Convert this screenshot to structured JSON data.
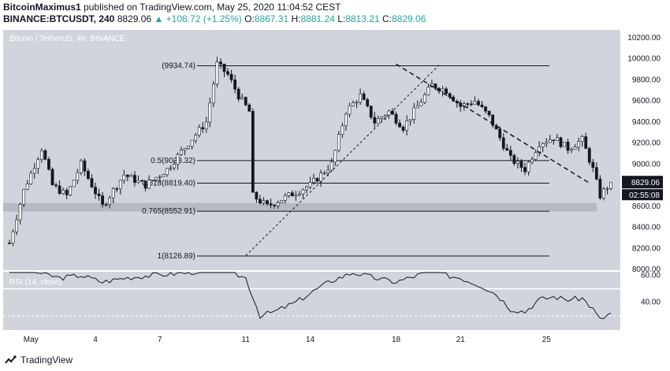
{
  "header": {
    "author": "BitcoinMaximus1",
    "published_text": "published on TradingView.com, May 25, 2020 11:04:52 CEST",
    "symbol": "BINANCE:BTCUSDT, 240",
    "last": "8829.06",
    "change": "+108.72 (+1.25%)",
    "o_label": "O:",
    "o_value": "8867.31",
    "h_label": "H:",
    "h_value": "8881.24",
    "l_label": "L:",
    "l_value": "8813.21",
    "c_label": "C:",
    "c_value": "8829.06"
  },
  "footer": {
    "brand": "TradingView"
  },
  "colors": {
    "panel_bg": "#d1d4dc",
    "up": "#ffffff",
    "down": "#131722",
    "support_zone": "#b2b5be",
    "line": "#131722"
  },
  "chart_data": {
    "type": "candlestick",
    "title": "Bitcoin / TetherUS, 4h, BINANCE",
    "price_axis": {
      "ylim": [
        8000,
        10260
      ],
      "ticks": [
        "10200.00",
        "10000.00",
        "9800.00",
        "9600.00",
        "9400.00",
        "9200.00",
        "9000.00",
        "8800.00",
        "8600.00",
        "8400.00",
        "8200.00",
        "8000.00"
      ],
      "current_price": "8829.06",
      "countdown": "02:55:08"
    },
    "x_axis": {
      "labels": [
        {
          "label": "May",
          "date": "2020-05-01"
        },
        {
          "label": "4",
          "date": "2020-05-04"
        },
        {
          "label": "7",
          "date": "2020-05-07"
        },
        {
          "label": "11",
          "date": "2020-05-11"
        },
        {
          "label": "14",
          "date": "2020-05-14"
        },
        {
          "label": "18",
          "date": "2020-05-18"
        },
        {
          "label": "21",
          "date": "2020-05-21"
        },
        {
          "label": "25",
          "date": "2020-05-25"
        }
      ]
    },
    "price_path": {
      "start": "2020-04-30",
      "interval_hours": 4,
      "anchors": [
        [
          0,
          8250
        ],
        [
          4,
          8750
        ],
        [
          9,
          9150
        ],
        [
          12,
          8800
        ],
        [
          16,
          8700
        ],
        [
          20,
          9000
        ],
        [
          26,
          8600
        ],
        [
          32,
          8900
        ],
        [
          38,
          8800
        ],
        [
          44,
          8950
        ],
        [
          50,
          9200
        ],
        [
          55,
          9400
        ],
        [
          58,
          9950
        ],
        [
          61,
          9850
        ],
        [
          64,
          9650
        ],
        [
          67,
          9500
        ],
        [
          68,
          8700
        ],
        [
          72,
          8600
        ],
        [
          78,
          8700
        ],
        [
          84,
          8800
        ],
        [
          90,
          9000
        ],
        [
          94,
          9500
        ],
        [
          98,
          9650
        ],
        [
          102,
          9400
        ],
        [
          106,
          9500
        ],
        [
          110,
          9350
        ],
        [
          114,
          9550
        ],
        [
          118,
          9750
        ],
        [
          122,
          9700
        ],
        [
          126,
          9550
        ],
        [
          130,
          9600
        ],
        [
          134,
          9450
        ],
        [
          137,
          9250
        ],
        [
          140,
          9050
        ],
        [
          144,
          8950
        ],
        [
          148,
          9200
        ],
        [
          152,
          9250
        ],
        [
          156,
          9150
        ],
        [
          160,
          9230
        ],
        [
          163,
          8950
        ],
        [
          165,
          8700
        ],
        [
          168,
          8830
        ]
      ]
    },
    "fibonacci": [
      {
        "ratio": "",
        "label": "(9934.74)",
        "price": 9934.74
      },
      {
        "ratio": "0.5",
        "label": "(9033.32)",
        "price": 9033.32
      },
      {
        "ratio": "0.618",
        "label": "(8819.40)",
        "price": 8819.4
      },
      {
        "ratio": "0.765",
        "label": "(8552.91)",
        "price": 8552.91
      },
      {
        "ratio": "1",
        "label": "(8126.89)",
        "price": 8126.89
      }
    ],
    "support_zone": {
      "low": 8550,
      "high": 8630
    },
    "ascending_trendline": {
      "from": {
        "date": "2020-05-11",
        "price": 8130
      },
      "to": {
        "date": "2020-05-20",
        "price": 9940
      }
    },
    "descending_trendline": {
      "from": {
        "date": "2020-05-18",
        "price": 9950
      },
      "to": {
        "date": "2020-05-27",
        "price": 8820
      }
    },
    "rsi": {
      "title": "RSI (14, close)",
      "ylim": [
        20,
        62
      ],
      "ticks": [
        "60.00",
        "40.00"
      ],
      "level_lines": [
        30,
        50,
        70
      ],
      "anchors": [
        [
          0,
          65
        ],
        [
          8,
          62
        ],
        [
          14,
          58
        ],
        [
          20,
          60
        ],
        [
          26,
          55
        ],
        [
          32,
          58
        ],
        [
          40,
          60
        ],
        [
          50,
          62
        ],
        [
          58,
          65
        ],
        [
          62,
          62
        ],
        [
          66,
          58
        ],
        [
          70,
          30
        ],
        [
          74,
          33
        ],
        [
          80,
          40
        ],
        [
          86,
          50
        ],
        [
          90,
          56
        ],
        [
          96,
          62
        ],
        [
          102,
          58
        ],
        [
          108,
          55
        ],
        [
          114,
          60
        ],
        [
          118,
          64
        ],
        [
          122,
          60
        ],
        [
          126,
          58
        ],
        [
          132,
          52
        ],
        [
          136,
          46
        ],
        [
          140,
          35
        ],
        [
          144,
          33
        ],
        [
          148,
          42
        ],
        [
          152,
          44
        ],
        [
          156,
          42
        ],
        [
          160,
          43
        ],
        [
          163,
          35
        ],
        [
          165,
          27
        ],
        [
          168,
          32
        ]
      ]
    }
  }
}
